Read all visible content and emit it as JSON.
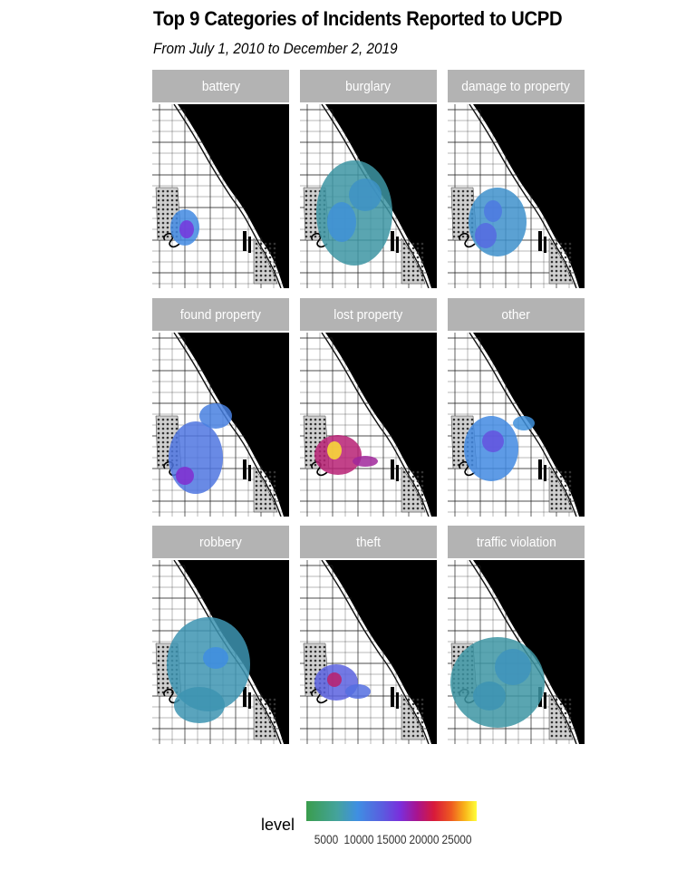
{
  "chart_data": {
    "type": "heatmap",
    "title": "Top 9 Categories of Incidents Reported to UCPD",
    "subtitle": "From July 1, 2010 to December 2, 2019",
    "facets": [
      {
        "label": "battery",
        "max_level": 12000
      },
      {
        "label": "burglary",
        "max_level": 8000
      },
      {
        "label": "damage to property",
        "max_level": 10000
      },
      {
        "label": "found property",
        "max_level": 14000
      },
      {
        "label": "lost property",
        "max_level": 27000
      },
      {
        "label": "other",
        "max_level": 12000
      },
      {
        "label": "robbery",
        "max_level": 9000
      },
      {
        "label": "theft",
        "max_level": 16000
      },
      {
        "label": "traffic violation",
        "max_level": 8000
      }
    ],
    "legend": {
      "title": "level",
      "position": "bottom",
      "ticks": [
        5000,
        10000,
        15000,
        20000,
        25000
      ],
      "tick_labels": [
        "5000",
        "10000",
        "15000",
        "20000",
        "25000"
      ],
      "range": [
        2000,
        28000
      ],
      "colors": [
        "#3a9d4d",
        "#3f8fe2",
        "#7a2fdc",
        "#d81a3a",
        "#ee5a20",
        "#ffff3a"
      ]
    }
  }
}
